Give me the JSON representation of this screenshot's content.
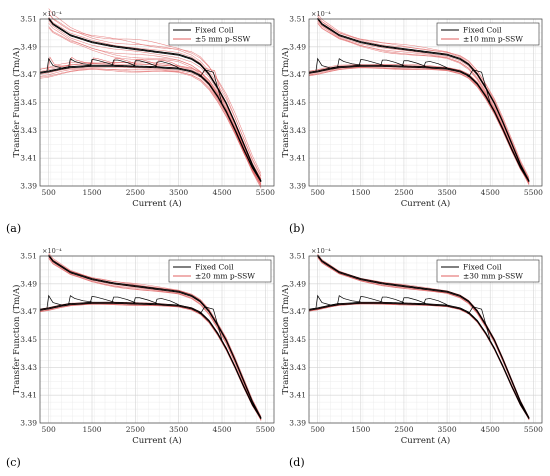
{
  "chart_data": [
    {
      "type": "line",
      "panel": "(a)",
      "xlabel": "Current (A)",
      "ylabel": "Transfer Function (Tm/A)",
      "y_exponent": "×10⁻⁴",
      "xlim": [
        300,
        5700
      ],
      "ylim": [
        3.39,
        3.51
      ],
      "xticks": [
        500,
        1500,
        2500,
        3500,
        4500,
        5500
      ],
      "yticks": [
        3.39,
        3.41,
        3.43,
        3.45,
        3.47,
        3.49,
        3.51
      ],
      "grid": true,
      "legend_position": "top-right",
      "series": [
        {
          "name": "Fixed Coil",
          "color": "#000000"
        },
        {
          "name": "±5 mm p-SSW",
          "color": "#e06060"
        }
      ],
      "spread": 0.006
    },
    {
      "type": "line",
      "panel": "(b)",
      "xlabel": "Current (A)",
      "ylabel": "Transfer Function (Tm/A)",
      "y_exponent": "×10⁻⁴",
      "xlim": [
        300,
        5700
      ],
      "ylim": [
        3.39,
        3.51
      ],
      "xticks": [
        500,
        1500,
        2500,
        3500,
        4500,
        5500
      ],
      "yticks": [
        3.39,
        3.41,
        3.43,
        3.45,
        3.47,
        3.49,
        3.51
      ],
      "grid": true,
      "legend_position": "top-right",
      "series": [
        {
          "name": "Fixed Coil",
          "color": "#000000"
        },
        {
          "name": "±10 mm p-SSW",
          "color": "#e06060"
        }
      ],
      "spread": 0.003
    },
    {
      "type": "line",
      "panel": "(c)",
      "xlabel": "Current (A)",
      "ylabel": "Transfer Function (Tm/A)",
      "y_exponent": "×10⁻⁴",
      "xlim": [
        300,
        5700
      ],
      "ylim": [
        3.39,
        3.51
      ],
      "xticks": [
        500,
        1500,
        2500,
        3500,
        4500,
        5500
      ],
      "yticks": [
        3.39,
        3.41,
        3.43,
        3.45,
        3.47,
        3.49,
        3.51
      ],
      "grid": true,
      "legend_position": "top-right",
      "series": [
        {
          "name": "Fixed Coil",
          "color": "#000000"
        },
        {
          "name": "±20 mm p-SSW",
          "color": "#e06060"
        }
      ],
      "spread": 0.0018
    },
    {
      "type": "line",
      "panel": "(d)",
      "xlabel": "Current (A)",
      "ylabel": "Transfer Function (Tm/A)",
      "y_exponent": "×10⁻⁴",
      "xlim": [
        300,
        5700
      ],
      "ylim": [
        3.39,
        3.51
      ],
      "xticks": [
        500,
        1500,
        2500,
        3500,
        4500,
        5500
      ],
      "yticks": [
        3.39,
        3.41,
        3.43,
        3.45,
        3.47,
        3.49,
        3.51
      ],
      "grid": true,
      "legend_position": "top-right",
      "series": [
        {
          "name": "Fixed Coil",
          "color": "#000000"
        },
        {
          "name": "±30 mm p-SSW",
          "color": "#e06060"
        }
      ],
      "spread": 0.0012
    }
  ],
  "curves": {
    "up_branch": {
      "x": [
        300,
        500,
        800,
        1000,
        1500,
        2000,
        2500,
        3000,
        3500,
        3800,
        4000,
        4200,
        4400,
        4600,
        4800,
        5000,
        5200,
        5400
      ],
      "y": [
        3.471,
        3.472,
        3.474,
        3.475,
        3.476,
        3.476,
        3.4755,
        3.475,
        3.474,
        3.472,
        3.469,
        3.463,
        3.454,
        3.443,
        3.43,
        3.416,
        3.403,
        3.393
      ]
    },
    "down_branch": {
      "x": [
        5400,
        5200,
        5000,
        4800,
        4600,
        4400,
        4200,
        4000,
        3800,
        3500,
        3000,
        2500,
        2000,
        1500,
        1000,
        800,
        600,
        500
      ],
      "y": [
        3.393,
        3.405,
        3.42,
        3.435,
        3.449,
        3.46,
        3.47,
        3.477,
        3.481,
        3.484,
        3.486,
        3.488,
        3.49,
        3.493,
        3.498,
        3.502,
        3.506,
        3.51
      ]
    },
    "minor_loops": {
      "x_start": [
        500,
        1000,
        1500,
        2000,
        2500,
        3000,
        4000
      ],
      "peak": [
        3.4815,
        3.4815,
        3.481,
        3.4805,
        3.48,
        3.479,
        3.4685
      ]
    }
  }
}
